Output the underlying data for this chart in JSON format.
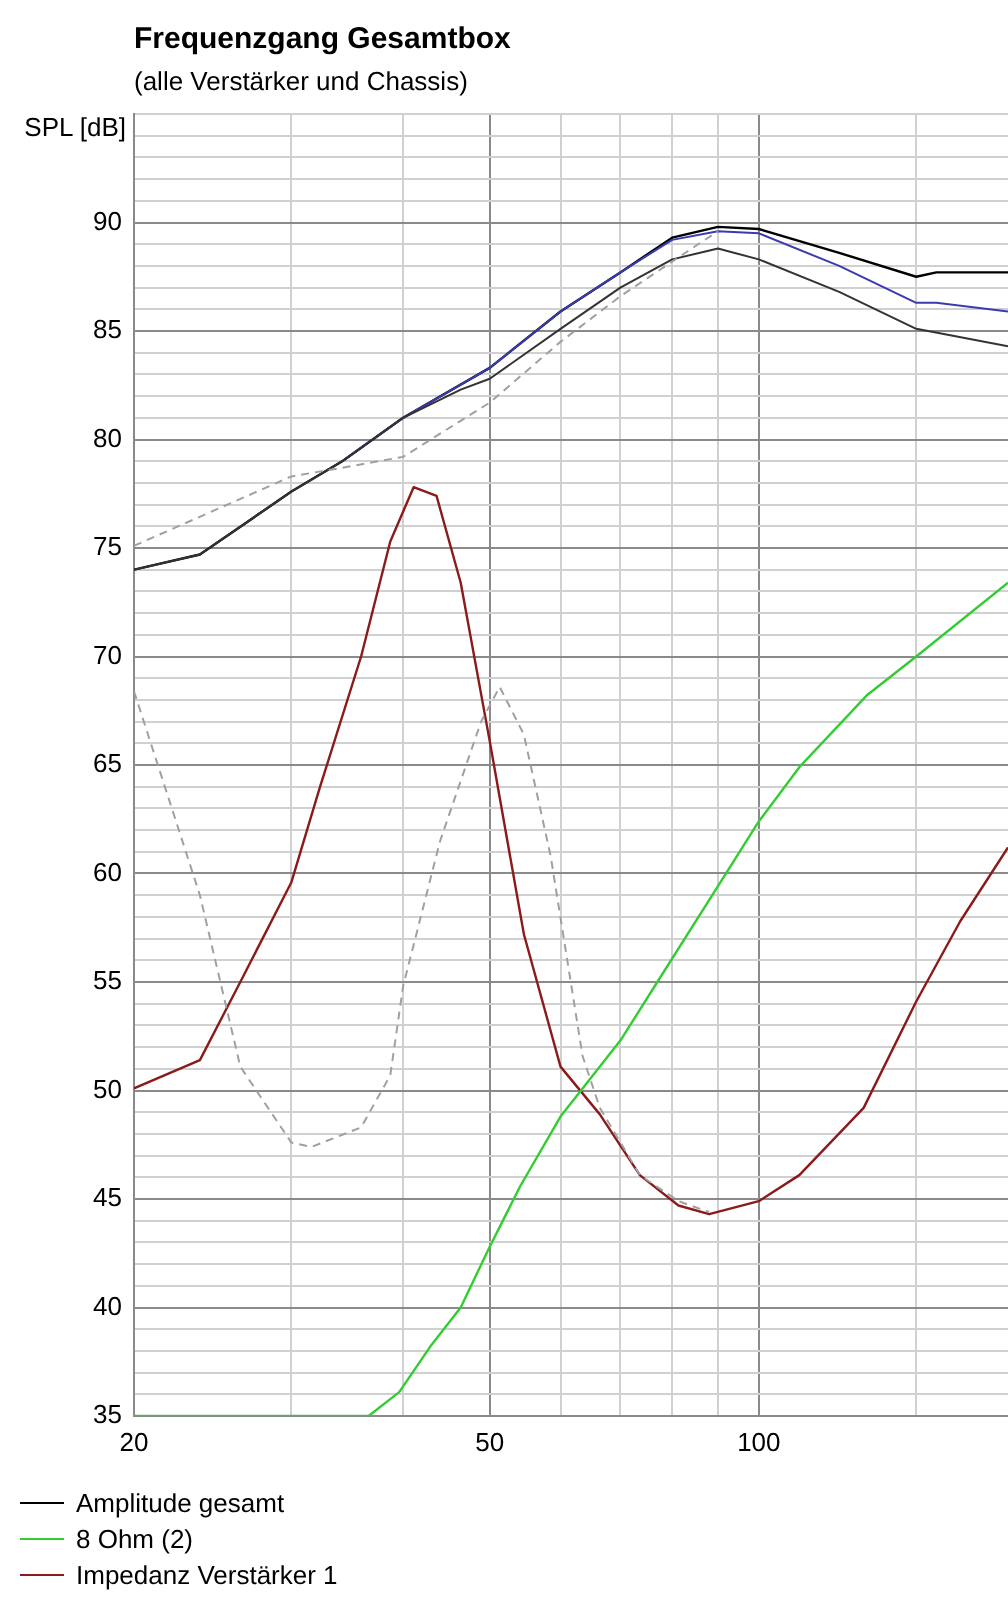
{
  "chart_data": {
    "type": "line",
    "title": "Frequenzgang Gesamtbox",
    "subtitle": "(alle Verstärker und Chassis)",
    "ylabel": "SPL [dB]",
    "log": "x",
    "xlim": [
      20,
      190
    ],
    "ylim": [
      35,
      95
    ],
    "xticks": [
      20,
      {
        "value": 30,
        "label": null
      },
      {
        "value": 40,
        "label": null
      },
      50,
      {
        "value": 60,
        "label": null
      },
      {
        "value": 70,
        "label": null
      },
      {
        "value": 80,
        "label": null
      },
      {
        "value": 90,
        "label": null
      },
      100,
      {
        "value": 150,
        "label": null
      }
    ],
    "yticks": [
      35,
      {
        "value": 36,
        "label": null
      },
      {
        "value": 37,
        "label": null
      },
      {
        "value": 38,
        "label": null
      },
      {
        "value": 39,
        "label": null
      },
      40,
      {
        "value": 41,
        "label": null
      },
      {
        "value": 42,
        "label": null
      },
      {
        "value": 43,
        "label": null
      },
      {
        "value": 44,
        "label": null
      },
      45,
      {
        "value": 46,
        "label": null
      },
      {
        "value": 47,
        "label": null
      },
      {
        "value": 48,
        "label": null
      },
      {
        "value": 49,
        "label": null
      },
      50,
      {
        "value": 51,
        "label": null
      },
      {
        "value": 52,
        "label": null
      },
      {
        "value": 53,
        "label": null
      },
      {
        "value": 54,
        "label": null
      },
      55,
      {
        "value": 56,
        "label": null
      },
      {
        "value": 57,
        "label": null
      },
      {
        "value": 58,
        "label": null
      },
      {
        "value": 59,
        "label": null
      },
      60,
      {
        "value": 61,
        "label": null
      },
      {
        "value": 62,
        "label": null
      },
      {
        "value": 63,
        "label": null
      },
      {
        "value": 64,
        "label": null
      },
      65,
      {
        "value": 66,
        "label": null
      },
      {
        "value": 67,
        "label": null
      },
      {
        "value": 68,
        "label": null
      },
      {
        "value": 69,
        "label": null
      },
      70,
      {
        "value": 71,
        "label": null
      },
      {
        "value": 72,
        "label": null
      },
      {
        "value": 73,
        "label": null
      },
      {
        "value": 74,
        "label": null
      },
      75,
      {
        "value": 76,
        "label": null
      },
      {
        "value": 77,
        "label": null
      },
      {
        "value": 78,
        "label": null
      },
      {
        "value": 79,
        "label": null
      },
      80,
      {
        "value": 81,
        "label": null
      },
      {
        "value": 82,
        "label": null
      },
      {
        "value": 83,
        "label": null
      },
      {
        "value": 84,
        "label": null
      },
      85,
      {
        "value": 86,
        "label": null
      },
      {
        "value": 87,
        "label": null
      },
      {
        "value": 88,
        "label": null
      },
      {
        "value": 89,
        "label": null
      },
      90,
      {
        "value": 91,
        "label": null
      },
      {
        "value": 92,
        "label": null
      },
      {
        "value": 93,
        "label": null
      },
      {
        "value": 94,
        "label": null
      },
      {
        "value": 95,
        "label": null
      }
    ],
    "grid": true,
    "legend": "bottom left",
    "marker": "none",
    "series": [
      {
        "color": "#a0a0a0",
        "line_style": "dashed",
        "x": [
          20,
          30,
          34.2,
          40,
          50,
          60,
          70,
          80,
          90
        ],
        "values": [
          75.1,
          78.3,
          78.7,
          79.2,
          81.7,
          84.5,
          86.6,
          88.2,
          89.6
        ]
      },
      {
        "color": "#a0a0a0",
        "line_style": "dashed",
        "x": [
          20,
          23.7,
          26.3,
          30,
          31.6,
          35.9,
          38.7,
          40,
          44,
          48.9,
          51.3,
          54.6,
          58.5,
          63.5,
          66.4,
          73.6,
          81.3,
          88
        ],
        "values": [
          68.4,
          59,
          51.1,
          47.6,
          47.4,
          48.3,
          50.7,
          54.8,
          61.5,
          67,
          68.6,
          66.4,
          60.8,
          51.6,
          49.2,
          46.1,
          44.9,
          44.4
        ]
      },
      {
        "color": "#333333",
        "x": [
          20,
          23.7,
          30,
          34.2,
          40,
          46.4,
          50,
          60,
          70,
          80,
          90,
          100,
          123,
          150,
          190
        ],
        "values": [
          74,
          74.7,
          77.6,
          79,
          81,
          82.3,
          82.8,
          85.1,
          87,
          88.3,
          88.8,
          88.3,
          86.8,
          85.1,
          84.3
        ]
      },
      {
        "color": "#3b3bb0",
        "x": [
          34.2,
          40,
          50,
          60,
          70,
          80,
          90,
          100,
          123,
          150,
          158,
          190
        ],
        "values": [
          79,
          81,
          83.3,
          85.9,
          87.7,
          89.2,
          89.6,
          89.5,
          88,
          86.3,
          86.3,
          85.9
        ]
      },
      {
        "name": "Amplitude gesamt",
        "color": "#000000",
        "x": [
          20,
          23.7,
          30,
          34.2,
          40,
          50,
          60,
          70,
          80,
          90,
          100,
          123,
          150,
          158,
          190
        ],
        "values": [
          74,
          74.7,
          77.6,
          79,
          81,
          83.3,
          85.9,
          87.7,
          89.3,
          89.8,
          89.7,
          88.6,
          87.5,
          87.7,
          87.7
        ]
      },
      {
        "name": "8 Ohm (2)",
        "color": "#33cc33",
        "x": [
          20,
          36.6,
          39.6,
          42.9,
          46.4,
          50,
          54.1,
          60,
          70,
          77,
          90.6,
          100,
          111,
          132,
          150,
          190
        ],
        "values": [
          35,
          35,
          36.1,
          38.2,
          40,
          42.8,
          45.6,
          48.8,
          52.3,
          55,
          59.6,
          62.4,
          64.9,
          68.2,
          70,
          73.4
        ]
      },
      {
        "name": "Impedanz Verstärker 1",
        "color": "#8b1a1a",
        "x": [
          20,
          23.7,
          26.3,
          30,
          32.3,
          35.9,
          38.7,
          41.1,
          43.6,
          46.4,
          50,
          54.6,
          60,
          66.4,
          73.6,
          81.3,
          88,
          100,
          111,
          131,
          150,
          168,
          190
        ],
        "values": [
          50.1,
          51.4,
          55,
          59.6,
          64,
          70,
          75.3,
          77.8,
          77.4,
          73.4,
          66.1,
          57.2,
          51.1,
          48.9,
          46.1,
          44.7,
          44.3,
          44.9,
          46.1,
          49.2,
          54.1,
          57.8,
          61.2
        ]
      }
    ]
  }
}
